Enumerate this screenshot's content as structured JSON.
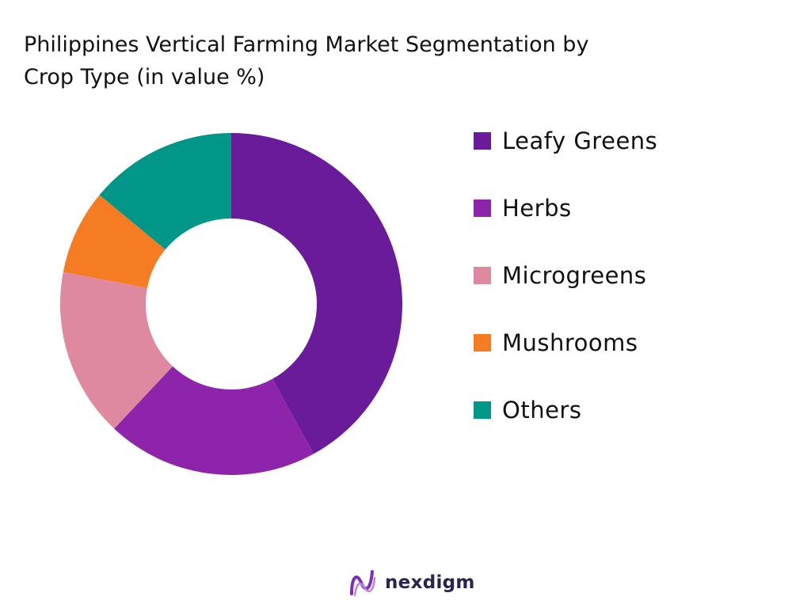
{
  "chart_data": {
    "type": "pie",
    "subtype": "donut",
    "title_lines": [
      "Philippines Vertical Farming Market Segmentation by",
      "Crop Type (in value %)"
    ],
    "categories": [
      "Leafy Greens",
      "Herbs",
      "Microgreens",
      "Mushrooms",
      "Others"
    ],
    "values": [
      42,
      20,
      16,
      8,
      14
    ],
    "colors": [
      "#6a1b9a",
      "#8e24aa",
      "#de899f",
      "#f57c22",
      "#009688"
    ],
    "legend_position": "right"
  },
  "brand": {
    "name": "nexdigm",
    "mark_color": "#7b2fbe"
  }
}
